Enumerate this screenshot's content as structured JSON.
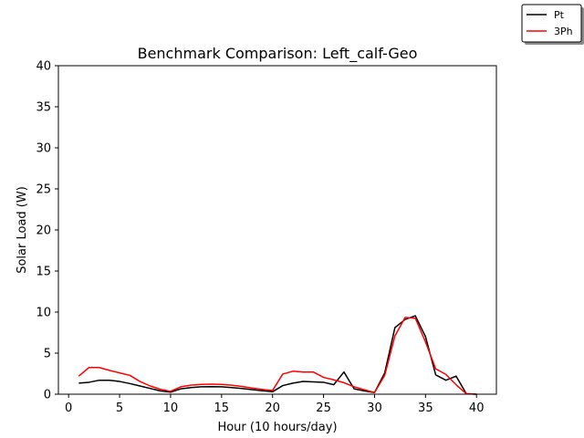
{
  "chart_data": {
    "type": "line",
    "title": "Benchmark Comparison: Left_calf-Geo",
    "xlabel": "Hour (10 hours/day)",
    "ylabel": "Solar Load (W)",
    "xlim": [
      -1,
      41.95
    ],
    "ylim": [
      0,
      40
    ],
    "xticks": [
      0,
      5,
      10,
      15,
      20,
      25,
      30,
      35,
      40
    ],
    "yticks": [
      0,
      5,
      10,
      15,
      20,
      25,
      30,
      35,
      40
    ],
    "grid": false,
    "legend_position": "top-right (outside plot)",
    "x": [
      1,
      2,
      3,
      4,
      5,
      6,
      7,
      8,
      9,
      10,
      11,
      12,
      13,
      14,
      15,
      16,
      17,
      18,
      19,
      20,
      21,
      22,
      23,
      24,
      25,
      26,
      27,
      28,
      29,
      30,
      31,
      32,
      33,
      34,
      35,
      36,
      37,
      38,
      39,
      40
    ],
    "series": [
      {
        "name": "Pt",
        "color": "#000000",
        "values": [
          1.35,
          1.45,
          1.7,
          1.7,
          1.55,
          1.3,
          1.0,
          0.7,
          0.4,
          0.25,
          0.65,
          0.8,
          0.9,
          0.92,
          0.9,
          0.8,
          0.7,
          0.55,
          0.42,
          0.3,
          1.05,
          1.35,
          1.55,
          1.5,
          1.45,
          1.15,
          2.7,
          0.65,
          0.4,
          0.2,
          2.6,
          8.1,
          9.1,
          9.55,
          7.0,
          2.35,
          1.7,
          2.2,
          0.05,
          0.0
        ]
      },
      {
        "name": "3Ph",
        "color": "#ff0000",
        "values": [
          2.2,
          3.25,
          3.25,
          2.9,
          2.6,
          2.3,
          1.55,
          1.0,
          0.6,
          0.35,
          0.9,
          1.1,
          1.2,
          1.22,
          1.2,
          1.1,
          0.95,
          0.75,
          0.58,
          0.45,
          2.45,
          2.8,
          2.7,
          2.7,
          2.05,
          1.75,
          1.4,
          0.9,
          0.55,
          0.2,
          2.3,
          7.1,
          9.35,
          9.25,
          6.35,
          3.1,
          2.4,
          1.15,
          0.05,
          0.0
        ]
      }
    ]
  }
}
